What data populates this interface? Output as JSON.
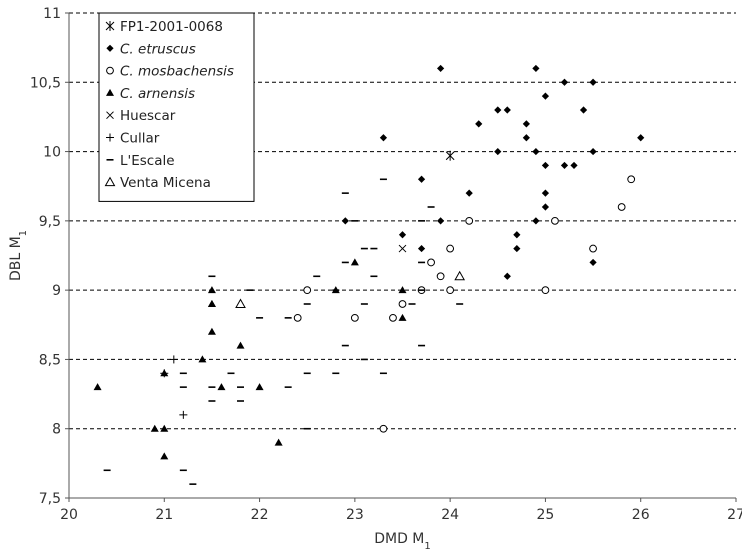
{
  "chart_data": {
    "type": "scatter",
    "xlabel": "DMD M1",
    "ylabel": "DBL M1",
    "xlim": [
      20,
      27
    ],
    "ylim": [
      7.5,
      11
    ],
    "xticks": [
      "20",
      "21",
      "22",
      "23",
      "24",
      "25",
      "26",
      "27"
    ],
    "yticks": [
      "7,5",
      "8",
      "8,5",
      "9",
      "9,5",
      "10",
      "10,5",
      "11"
    ],
    "grid": "horizontal-dashed",
    "legend": "top-left",
    "series": [
      {
        "name": "FP1-2001-0068",
        "marker": "asterisk",
        "points": [
          [
            24.0,
            9.97
          ]
        ]
      },
      {
        "name": "C. etruscus",
        "italic": true,
        "marker": "diamond",
        "points": [
          [
            23.9,
            10.6
          ],
          [
            24.9,
            10.6
          ],
          [
            25.2,
            10.5
          ],
          [
            25.5,
            10.5
          ],
          [
            24.5,
            10.3
          ],
          [
            24.6,
            10.3
          ],
          [
            25.4,
            10.3
          ],
          [
            25.0,
            10.4
          ],
          [
            24.3,
            10.2
          ],
          [
            24.8,
            10.2
          ],
          [
            23.3,
            10.1
          ],
          [
            24.8,
            10.1
          ],
          [
            26.0,
            10.1
          ],
          [
            24.5,
            10.0
          ],
          [
            24.9,
            10.0
          ],
          [
            25.5,
            10.0
          ],
          [
            25.0,
            9.9
          ],
          [
            25.2,
            9.9
          ],
          [
            25.3,
            9.9
          ],
          [
            23.7,
            9.8
          ],
          [
            24.2,
            9.7
          ],
          [
            25.0,
            9.7
          ],
          [
            25.0,
            9.6
          ],
          [
            22.9,
            9.5
          ],
          [
            23.9,
            9.5
          ],
          [
            24.9,
            9.5
          ],
          [
            23.5,
            9.4
          ],
          [
            24.7,
            9.4
          ],
          [
            23.7,
            9.3
          ],
          [
            24.7,
            9.3
          ],
          [
            24.6,
            9.1
          ],
          [
            25.5,
            9.2
          ]
        ]
      },
      {
        "name": "C. mosbachensis",
        "italic": true,
        "marker": "circle",
        "points": [
          [
            25.9,
            9.8
          ],
          [
            25.8,
            9.6
          ],
          [
            24.2,
            9.5
          ],
          [
            25.1,
            9.5
          ],
          [
            24.0,
            9.3
          ],
          [
            25.5,
            9.3
          ],
          [
            23.8,
            9.2
          ],
          [
            23.9,
            9.1
          ],
          [
            22.5,
            9.0
          ],
          [
            23.7,
            9.0
          ],
          [
            24.0,
            9.0
          ],
          [
            25.0,
            9.0
          ],
          [
            23.5,
            8.9
          ],
          [
            22.4,
            8.8
          ],
          [
            23.0,
            8.8
          ],
          [
            23.4,
            8.8
          ],
          [
            23.3,
            8.0
          ]
        ]
      },
      {
        "name": "C. arnensis",
        "italic": true,
        "marker": "triangle-filled",
        "points": [
          [
            23.0,
            9.2
          ],
          [
            21.5,
            9.0
          ],
          [
            22.8,
            9.0
          ],
          [
            23.5,
            9.0
          ],
          [
            21.5,
            8.9
          ],
          [
            21.5,
            8.9
          ],
          [
            23.5,
            8.8
          ],
          [
            21.5,
            8.7
          ],
          [
            21.8,
            8.6
          ],
          [
            21.4,
            8.5
          ],
          [
            21.0,
            8.4
          ],
          [
            20.3,
            8.3
          ],
          [
            21.6,
            8.3
          ],
          [
            22.0,
            8.3
          ],
          [
            20.9,
            8.0
          ],
          [
            21.0,
            8.0
          ],
          [
            22.2,
            7.9
          ],
          [
            21.0,
            7.8
          ]
        ]
      },
      {
        "name": "Huescar",
        "marker": "cross",
        "points": [
          [
            23.5,
            9.3
          ]
        ]
      },
      {
        "name": "Cullar",
        "marker": "plus",
        "points": [
          [
            21.1,
            8.5
          ],
          [
            21.0,
            8.4
          ],
          [
            21.2,
            8.1
          ]
        ]
      },
      {
        "name": "L'Escale",
        "marker": "dash",
        "points": [
          [
            23.3,
            9.8
          ],
          [
            22.9,
            9.7
          ],
          [
            23.8,
            9.6
          ],
          [
            23.0,
            9.5
          ],
          [
            23.7,
            9.5
          ],
          [
            23.1,
            9.3
          ],
          [
            23.2,
            9.3
          ],
          [
            22.9,
            9.2
          ],
          [
            23.7,
            9.2
          ],
          [
            21.5,
            9.1
          ],
          [
            22.6,
            9.1
          ],
          [
            23.2,
            9.1
          ],
          [
            21.9,
            9.0
          ],
          [
            22.8,
            9.0
          ],
          [
            23.7,
            9.0
          ],
          [
            22.5,
            8.9
          ],
          [
            23.1,
            8.9
          ],
          [
            23.6,
            8.9
          ],
          [
            24.1,
            8.9
          ],
          [
            22.0,
            8.8
          ],
          [
            22.3,
            8.8
          ],
          [
            23.7,
            8.6
          ],
          [
            22.9,
            8.6
          ],
          [
            21.2,
            8.4
          ],
          [
            22.5,
            8.4
          ],
          [
            22.8,
            8.4
          ],
          [
            23.3,
            8.4
          ],
          [
            21.5,
            8.3
          ],
          [
            21.8,
            8.3
          ],
          [
            22.3,
            8.3
          ],
          [
            21.2,
            8.3
          ],
          [
            21.5,
            8.2
          ],
          [
            21.8,
            8.2
          ],
          [
            22.5,
            8.0
          ],
          [
            21.2,
            7.7
          ],
          [
            20.4,
            7.7
          ],
          [
            21.3,
            7.6
          ],
          [
            21.7,
            8.4
          ],
          [
            23.1,
            8.5
          ]
        ]
      },
      {
        "name": "Venta Micena",
        "marker": "triangle-open",
        "points": [
          [
            21.8,
            8.9
          ],
          [
            24.1,
            9.1
          ]
        ]
      }
    ]
  }
}
